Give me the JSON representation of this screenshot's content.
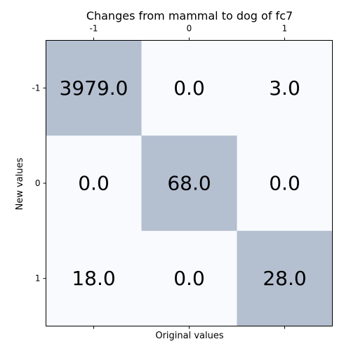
{
  "chart_data": {
    "type": "heatmap",
    "title": "Changes from mammal to dog of fc7",
    "xlabel": "Original values",
    "ylabel": "New values",
    "x_categories": [
      "-1",
      "0",
      "1"
    ],
    "y_categories": [
      "-1",
      "0",
      "1"
    ],
    "values": [
      [
        3979.0,
        0.0,
        3.0
      ],
      [
        0.0,
        68.0,
        0.0
      ],
      [
        18.0,
        0.0,
        28.0
      ]
    ],
    "cell_text": [
      [
        "3979.0",
        "0.0",
        "3.0"
      ],
      [
        "0.0",
        "68.0",
        "0.0"
      ],
      [
        "18.0",
        "0.0",
        "28.0"
      ]
    ],
    "x_ticks_position": "top",
    "colors": {
      "highlight": "#b4bfd0",
      "background": "#f8fafe",
      "frame": "#000000"
    },
    "grid": false,
    "legend": "none"
  }
}
